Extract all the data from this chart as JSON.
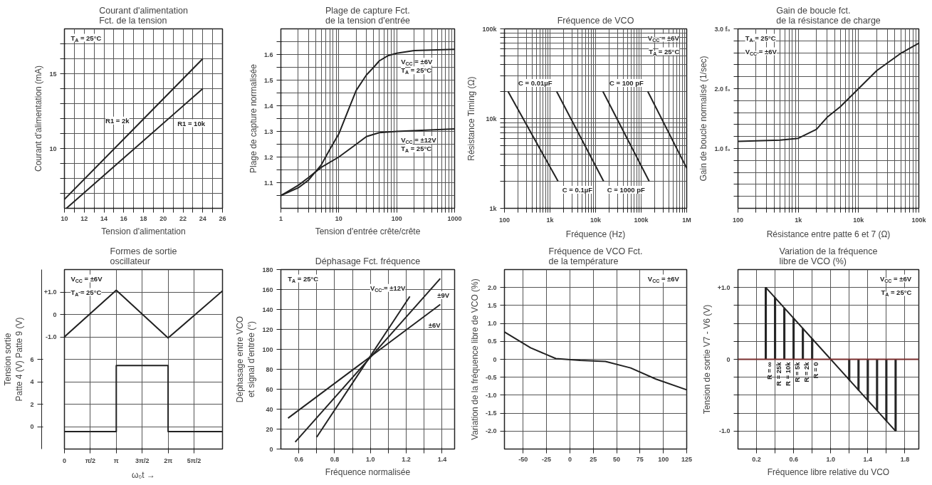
{
  "chart_data": [
    {
      "type": "line",
      "title": "Courant d'alimentation\nFct. de la tension",
      "xlabel": "Tension d'alimentation",
      "ylabel": "Courant d'alimentation (mA)",
      "xlim": [
        10,
        26
      ],
      "ylim": [
        6,
        18
      ],
      "xticks": [
        10,
        {
          "value": 11,
          "label": null
        },
        12,
        {
          "value": 13,
          "label": null
        },
        14,
        {
          "value": 15,
          "label": null
        },
        16,
        {
          "value": 17,
          "label": null
        },
        18,
        {
          "value": 19,
          "label": null
        },
        20,
        {
          "value": 21,
          "label": null
        },
        22,
        {
          "value": 23,
          "label": null
        },
        24,
        {
          "value": 25,
          "label": null
        },
        26
      ],
      "yticks": [
        {
          "value": 7,
          "label": null
        },
        {
          "value": 8,
          "label": null
        },
        {
          "value": 9,
          "label": null
        },
        10,
        {
          "value": 11,
          "label": null
        },
        {
          "value": 12,
          "label": null
        },
        {
          "value": 13,
          "label": null
        },
        {
          "value": 14,
          "label": null
        },
        15,
        {
          "value": 16,
          "label": null
        },
        {
          "value": 17,
          "label": null
        }
      ],
      "grid": true,
      "series": [
        {
          "color": "#222222",
          "x": [
            10,
            24
          ],
          "values": [
            6.6,
            16
          ]
        },
        {
          "color": "#222222",
          "x": [
            10.2,
            24
          ],
          "values": [
            6.0,
            14
          ]
        }
      ],
      "annotations": [
        "T$_{A}$ = 25°C",
        {
          "text": "R1 = 2k",
          "x": 17,
          "y": 11.3
        },
        {
          "text": "R1 = 10k",
          "x": 21,
          "y": 12.26
        }
      ]
    },
    {
      "type": "line",
      "title": "Plage de capture Fct.\nde la tension d'entrée",
      "xlabel": "Tension d'entrée crête/crête",
      "ylabel": "Plage de capture normalisée",
      "log": "x",
      "xlim": [
        1,
        1000
      ],
      "ylim": [
        1.0,
        1.7
      ],
      "xticks": [
        1,
        {
          "value": 2,
          "label": null
        },
        {
          "value": 3,
          "label": null
        },
        {
          "value": 4,
          "label": null
        },
        {
          "value": 5,
          "label": null
        },
        {
          "value": 6,
          "label": null
        },
        {
          "value": 7,
          "label": null
        },
        {
          "value": 8,
          "label": null
        },
        {
          "value": 9,
          "label": null
        },
        10,
        {
          "value": 20,
          "label": null
        },
        {
          "value": 30,
          "label": null
        },
        {
          "value": 40,
          "label": null
        },
        {
          "value": 50,
          "label": null
        },
        {
          "value": 60,
          "label": null
        },
        {
          "value": 70,
          "label": null
        },
        {
          "value": 80,
          "label": null
        },
        {
          "value": 90,
          "label": null
        },
        100,
        {
          "value": 200,
          "label": null
        },
        {
          "value": 300,
          "label": null
        },
        {
          "value": 400,
          "label": null
        },
        {
          "value": 500,
          "label": null
        },
        {
          "value": 600,
          "label": null
        },
        {
          "value": 700,
          "label": null
        },
        {
          "value": 800,
          "label": null
        },
        {
          "value": 900,
          "label": null
        },
        1000
      ],
      "yticks": [
        {
          "value": 1.05,
          "label": null
        },
        1.1,
        {
          "value": 1.15,
          "label": null
        },
        1.2,
        {
          "value": 1.25,
          "label": null
        },
        1.3,
        {
          "value": 1.35,
          "label": null
        },
        1.4,
        {
          "value": 1.45,
          "label": null
        },
        1.5,
        {
          "value": 1.55,
          "label": null
        },
        1.6,
        {
          "value": 1.65,
          "label": null
        }
      ],
      "grid": true,
      "series": [
        {
          "color": "#222222",
          "x": [
            1,
            2,
            3,
            5,
            7,
            10,
            15,
            20,
            30,
            40,
            50,
            70,
            100,
            200,
            1000
          ],
          "values": [
            1.05,
            1.08,
            1.11,
            1.17,
            1.23,
            1.29,
            1.39,
            1.46,
            1.52,
            1.55,
            1.575,
            1.595,
            1.605,
            1.615,
            1.62
          ]
        },
        {
          "color": "#222222",
          "x": [
            1,
            2,
            3,
            5,
            10,
            20,
            30,
            50,
            100,
            1000
          ],
          "values": [
            1.05,
            1.09,
            1.12,
            1.16,
            1.2,
            1.25,
            1.28,
            1.295,
            1.3,
            1.31
          ]
        }
      ],
      "annotations": [
        {
          "text": "V$_{CC}$ = ±6V",
          "x": 100,
          "y": 1.605
        },
        {
          "text": "T$_{A}$ = 25°C",
          "x": 100,
          "y": 1.605
        },
        {
          "text": "V$_{CC}$ = ±12V",
          "x": 100,
          "y": 1.3
        },
        {
          "text": "T$_{A}$ = 25°C",
          "x": 100,
          "y": 1.3
        }
      ]
    },
    {
      "type": "line",
      "title": "Fréquence de VCO",
      "xlabel": "Fréquence (Hz)",
      "ylabel": "Résistance Timing (Ω)",
      "log": "xy",
      "xlim": [
        100,
        1000000
      ],
      "ylim": [
        1000,
        100000
      ],
      "xticks": [
        100,
        {
          "value": 200,
          "label": null
        },
        {
          "value": 300,
          "label": null
        },
        {
          "value": 400,
          "label": null
        },
        {
          "value": 500,
          "label": null
        },
        {
          "value": 600,
          "label": null
        },
        {
          "value": 700,
          "label": null
        },
        {
          "value": 800,
          "label": null
        },
        {
          "value": 900,
          "label": null
        },
        {
          "value": 1000,
          "label": "1k"
        },
        {
          "value": 2000,
          "label": null
        },
        {
          "value": 3000,
          "label": null
        },
        {
          "value": 4000,
          "label": null
        },
        {
          "value": 5000,
          "label": null
        },
        {
          "value": 6000,
          "label": null
        },
        {
          "value": 7000,
          "label": null
        },
        {
          "value": 8000,
          "label": null
        },
        {
          "value": 9000,
          "label": null
        },
        {
          "value": 10000,
          "label": "10k"
        },
        {
          "value": 20000,
          "label": null
        },
        {
          "value": 30000,
          "label": null
        },
        {
          "value": 40000,
          "label": null
        },
        {
          "value": 50000,
          "label": null
        },
        {
          "value": 60000,
          "label": null
        },
        {
          "value": 70000,
          "label": null
        },
        {
          "value": 80000,
          "label": null
        },
        {
          "value": 90000,
          "label": null
        },
        {
          "value": 100000,
          "label": "100k"
        },
        {
          "value": 200000,
          "label": null
        },
        {
          "value": 300000,
          "label": null
        },
        {
          "value": 400000,
          "label": null
        },
        {
          "value": 500000,
          "label": null
        },
        {
          "value": 600000,
          "label": null
        },
        {
          "value": 700000,
          "label": null
        },
        {
          "value": 800000,
          "label": null
        },
        {
          "value": 900000,
          "label": null
        },
        {
          "value": 1000000,
          "label": "1M"
        }
      ],
      "yticks": [
        {
          "value": 1000,
          "label": "1k"
        },
        {
          "value": 2000,
          "label": null
        },
        {
          "value": 3000,
          "label": null
        },
        {
          "value": 4000,
          "label": null
        },
        {
          "value": 5000,
          "label": null
        },
        {
          "value": 6000,
          "label": null
        },
        {
          "value": 7000,
          "label": null
        },
        {
          "value": 8000,
          "label": null
        },
        {
          "value": 9000,
          "label": null
        },
        {
          "value": 10000,
          "label": "10k"
        },
        {
          "value": 20000,
          "label": null
        },
        {
          "value": 30000,
          "label": null
        },
        {
          "value": 40000,
          "label": null
        },
        {
          "value": 50000,
          "label": null
        },
        {
          "value": 60000,
          "label": null
        },
        {
          "value": 70000,
          "label": null
        },
        {
          "value": 80000,
          "label": null
        },
        {
          "value": 90000,
          "label": null
        },
        {
          "value": 100000,
          "label": "100k"
        }
      ],
      "grid": true,
      "series": [
        {
          "color": "#222222",
          "x": [
            120,
            1500
          ],
          "values": [
            20000,
            2000
          ]
        },
        {
          "color": "#222222",
          "x": [
            1400,
            15000
          ],
          "values": [
            20000,
            2000
          ]
        },
        {
          "color": "#222222",
          "x": [
            14500,
            150000
          ],
          "values": [
            20000,
            2000
          ]
        },
        {
          "color": "#222222",
          "x": [
            140000,
            1000000
          ],
          "values": [
            20000,
            2800
          ]
        }
      ],
      "annotations": [
        "V$_{CC}$ = ±6V",
        "T$_{A}$ = 25°C",
        {
          "text": "C = 0.01µF",
          "x": 1400,
          "y": 20000
        },
        {
          "text": "C = 100 pF",
          "x": 140000,
          "y": 20000
        },
        {
          "text": "C = 0.1µF",
          "x": 1500,
          "y": 2000
        },
        {
          "text": "C = 1000 pF",
          "x": 150000,
          "y": 2000
        }
      ]
    },
    {
      "type": "line",
      "title": "Gain de boucle fct.\nde la résistance de charge",
      "xlabel": "Résistance entre patte 6 et 7 (Ω)",
      "ylabel": "Gain de boucle normalisé (1/sec)",
      "log": "x",
      "xlim": [
        100,
        100000
      ],
      "ylim": [
        0,
        3
      ],
      "xticks": [
        100,
        {
          "value": 200,
          "label": null
        },
        {
          "value": 300,
          "label": null
        },
        {
          "value": 400,
          "label": null
        },
        {
          "value": 500,
          "label": null
        },
        {
          "value": 600,
          "label": null
        },
        {
          "value": 700,
          "label": null
        },
        {
          "value": 800,
          "label": null
        },
        {
          "value": 900,
          "label": null
        },
        {
          "value": 1000,
          "label": "1k"
        },
        {
          "value": 2000,
          "label": null
        },
        {
          "value": 3000,
          "label": null
        },
        {
          "value": 4000,
          "label": null
        },
        {
          "value": 5000,
          "label": null
        },
        {
          "value": 6000,
          "label": null
        },
        {
          "value": 7000,
          "label": null
        },
        {
          "value": 8000,
          "label": null
        },
        {
          "value": 9000,
          "label": null
        },
        {
          "value": 10000,
          "label": "10k"
        },
        {
          "value": 20000,
          "label": null
        },
        {
          "value": 30000,
          "label": null
        },
        {
          "value": 40000,
          "label": null
        },
        {
          "value": 50000,
          "label": null
        },
        {
          "value": 60000,
          "label": null
        },
        {
          "value": 70000,
          "label": null
        },
        {
          "value": 80000,
          "label": null
        },
        {
          "value": 90000,
          "label": null
        },
        {
          "value": 100000,
          "label": "100k"
        }
      ],
      "yticks": [
        {
          "value": 0.2,
          "label": null
        },
        {
          "value": 0.4,
          "label": null
        },
        {
          "value": 0.6,
          "label": null
        },
        {
          "value": 0.8,
          "label": null
        },
        {
          "value": 1,
          "label": "1.0 f₀"
        },
        {
          "value": 1.2,
          "label": null
        },
        {
          "value": 1.4,
          "label": null
        },
        {
          "value": 1.6,
          "label": null
        },
        {
          "value": 1.8,
          "label": null
        },
        {
          "value": 2,
          "label": "2.0 f₀"
        },
        {
          "value": 2.2,
          "label": null
        },
        {
          "value": 2.4,
          "label": null
        },
        {
          "value": 2.6,
          "label": null
        },
        {
          "value": 2.8,
          "label": null
        },
        {
          "value": 3,
          "label": "3.0 f₀"
        }
      ],
      "grid": true,
      "series": [
        {
          "color": "#222222",
          "x": [
            100,
            500,
            1000,
            2000,
            3000,
            5000,
            10000,
            20000,
            50000,
            100000
          ],
          "values": [
            1.12,
            1.14,
            1.17,
            1.32,
            1.52,
            1.7,
            2.0,
            2.3,
            2.59,
            2.76
          ]
        }
      ],
      "annotations": [
        "T$_{A}$ = 25°C",
        "V$_{CC}$ = ±6V"
      ]
    },
    {
      "type": "line",
      "title": "Formes de sortie\noscillateur",
      "xlabel": "ω₀t →",
      "ylabel": "Tension sortie\nPatte 4 (V) Patte 9 (V)",
      "xlim": [
        0,
        9.58
      ],
      "ylim": [
        -2,
        14
      ],
      "y2lim": [
        -6,
        2
      ],
      "xticks": [
        0,
        {
          "value": 1.5708,
          "label": "π/2"
        },
        {
          "value": 3.1416,
          "label": "π"
        },
        {
          "value": 4.7124,
          "label": "3π/2"
        },
        {
          "value": 6.2832,
          "label": "2π"
        },
        {
          "value": 7.854,
          "label": "5π/2"
        }
      ],
      "yticks": [
        0,
        2,
        4,
        6
      ],
      "y2ticks": [
        {
          "value": 1,
          "label": "+1.0"
        },
        0,
        {
          "value": -1,
          "label": "-1.0"
        }
      ],
      "grid": true,
      "series": [
        {
          "color": "#222222",
          "axis": "y2",
          "x": [
            0,
            3.1416,
            6.2832,
            9.58
          ],
          "values": [
            -1.0,
            1.08,
            -1.05,
            1.05
          ]
        },
        {
          "color": "#222222",
          "x": [
            0,
            3.1416,
            3.1416,
            6.2832,
            6.2832,
            9.58
          ],
          "values": [
            -0.45,
            -0.45,
            5.45,
            5.45,
            -0.45,
            -0.45
          ]
        }
      ],
      "annotations": [
        "V$_{CC}$ = ±6V",
        "T$_{A}$ = 25°C"
      ]
    },
    {
      "type": "line",
      "title": "Déphasage Fct. fréquence",
      "xlabel": "Fréquence normalisée",
      "ylabel": "Déphasage entre VCO\net signal d'entrée (°)",
      "xlim": [
        0.5,
        1.47
      ],
      "ylim": [
        0,
        180
      ],
      "xticks": [
        0.6,
        {
          "value": 0.7,
          "label": null
        },
        0.8,
        {
          "value": 0.9,
          "label": null
        },
        {
          "value": 1,
          "label": "1.0"
        },
        {
          "value": 1.1,
          "label": null
        },
        1.2,
        {
          "value": 1.3,
          "label": null
        },
        1.4
      ],
      "yticks": [
        0,
        20,
        40,
        60,
        80,
        100,
        120,
        140,
        160,
        180
      ],
      "grid": true,
      "series": [
        {
          "color": "#222222",
          "x": [
            0.54,
            1.39
          ],
          "values": [
            31,
            145
          ]
        },
        {
          "color": "#222222",
          "x": [
            0.58,
            1.39
          ],
          "values": [
            7,
            171
          ]
        },
        {
          "color": "#222222",
          "x": [
            0.7,
            1.22
          ],
          "values": [
            12,
            153
          ]
        }
      ],
      "annotations": [
        "T$_{A}$ = 25°C",
        {
          "text": "V$_{CC}$ = ±12V",
          "x": 1.22,
          "y": 153
        },
        {
          "text": "±9V",
          "x": 1.35,
          "y": 162.9
        },
        {
          "text": "±6V",
          "x": 1.3,
          "y": 132.9
        }
      ]
    },
    {
      "type": "line",
      "title": "Fréquence de VCO Fct.\nde la température",
      "ylabel": "Variation de la fréquence libre de VCO (%)",
      "xlim": [
        -70,
        125
      ],
      "ylim": [
        -2.5,
        2.5
      ],
      "xticks": [
        -50,
        -25,
        0,
        25,
        50,
        75,
        100,
        125
      ],
      "yticks": [
        {
          "value": 2,
          "label": "2.0"
        },
        1.5,
        {
          "value": 1,
          "label": "1.0"
        },
        0.5,
        0,
        -0.5,
        {
          "value": -1,
          "label": "-1.0"
        },
        -1.5,
        {
          "value": -2,
          "label": "-2.0"
        }
      ],
      "grid": true,
      "series": [
        {
          "color": "#222222",
          "x": [
            -70,
            -42,
            -15,
            11,
            38,
            65,
            92,
            125
          ],
          "values": [
            0.76,
            0.32,
            0.02,
            -0.03,
            -0.06,
            -0.24,
            -0.55,
            -0.85
          ]
        }
      ],
      "annotations": [
        "V$_{CC}$ = ±6V"
      ]
    },
    {
      "type": "line",
      "title": "Variation de la fréquence\nlibre de VCO (%)",
      "xlabel": "Fréquence libre relative du VCO",
      "ylabel": "Tension de sortie V7 - V6 (V)",
      "xlim": [
        0,
        1.95
      ],
      "ylim": [
        -1.25,
        1.25
      ],
      "xticks": [
        0.2,
        {
          "value": 0.4,
          "label": null
        },
        0.6,
        {
          "value": 0.8,
          "label": null
        },
        {
          "value": 1,
          "label": "1.0"
        },
        {
          "value": 1.2,
          "label": null
        },
        1.4,
        {
          "value": 1.6,
          "label": null
        },
        1.8
      ],
      "yticks": [
        {
          "value": -1,
          "label": "-1.0"
        },
        {
          "value": -0.75,
          "label": null
        },
        {
          "value": -0.5,
          "label": null
        },
        {
          "value": -0.25,
          "label": null
        },
        0,
        {
          "value": 0.25,
          "label": null
        },
        {
          "value": 0.5,
          "label": null
        },
        {
          "value": 0.75,
          "label": null
        },
        {
          "value": 1,
          "label": "+1.0"
        }
      ],
      "grid": true,
      "ref_lines": [
        {
          "axis": "y",
          "value": 0,
          "color": "#7b2e2e"
        }
      ],
      "series": [
        {
          "type": "bar",
          "color": "#222222",
          "x": [
            0.3,
            0.4,
            0.5,
            0.6,
            0.7,
            0.8,
            1.2,
            1.3,
            1.4,
            1.5,
            1.6,
            1.7
          ],
          "values": [
            1.0,
            0.86,
            0.71,
            0.57,
            0.43,
            0.29,
            -0.29,
            -0.43,
            -0.57,
            -0.71,
            -0.86,
            -1.0
          ]
        },
        {
          "type": "line",
          "color": "#222222",
          "x": [
            0.3,
            1.0,
            1.7
          ],
          "values": [
            1.0,
            0,
            -1.0
          ]
        }
      ],
      "annotations": [
        "V$_{CC}$ = ±6V",
        "T$_{A}$ = 25°C",
        {
          "text": "R = ∞",
          "x": 0.3,
          "y": 0
        },
        {
          "text": "R = 25k",
          "x": 0.4,
          "y": 0
        },
        {
          "text": "R = 10k",
          "x": 0.5,
          "y": 0
        },
        {
          "text": "R = 5k",
          "x": 0.6,
          "y": 0
        },
        {
          "text": "R = 2k",
          "x": 0.7,
          "y": 0
        },
        {
          "text": "R = 0",
          "x": 0.8,
          "y": 0
        }
      ]
    }
  ]
}
